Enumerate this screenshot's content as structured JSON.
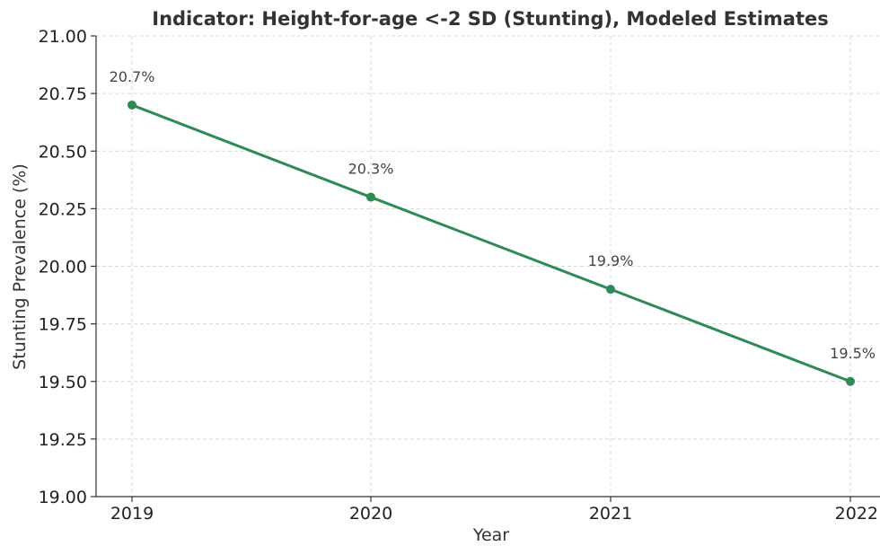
{
  "chart_data": {
    "type": "line",
    "title": "Indicator: Height-for-age <-2 SD (Stunting), Modeled Estimates",
    "xlabel": "Year",
    "ylabel": "Stunting Prevalence (%)",
    "categories": [
      "2019",
      "2020",
      "2021",
      "2022"
    ],
    "series": [
      {
        "values": [
          20.7,
          20.3,
          19.9,
          19.5
        ],
        "data_labels": [
          "20.7%",
          "20.3%",
          "19.9%",
          "19.5%"
        ],
        "color": "#2e8b57",
        "marker": "circle"
      }
    ],
    "ylim": [
      19.0,
      21.0
    ],
    "yticks": [
      19.0,
      19.25,
      19.5,
      19.75,
      20.0,
      20.25,
      20.5,
      20.75,
      21.0
    ],
    "ytick_labels": [
      "19.00",
      "19.25",
      "19.50",
      "19.75",
      "20.00",
      "20.25",
      "20.50",
      "20.75",
      "21.00"
    ],
    "grid": true,
    "legend": "none"
  }
}
